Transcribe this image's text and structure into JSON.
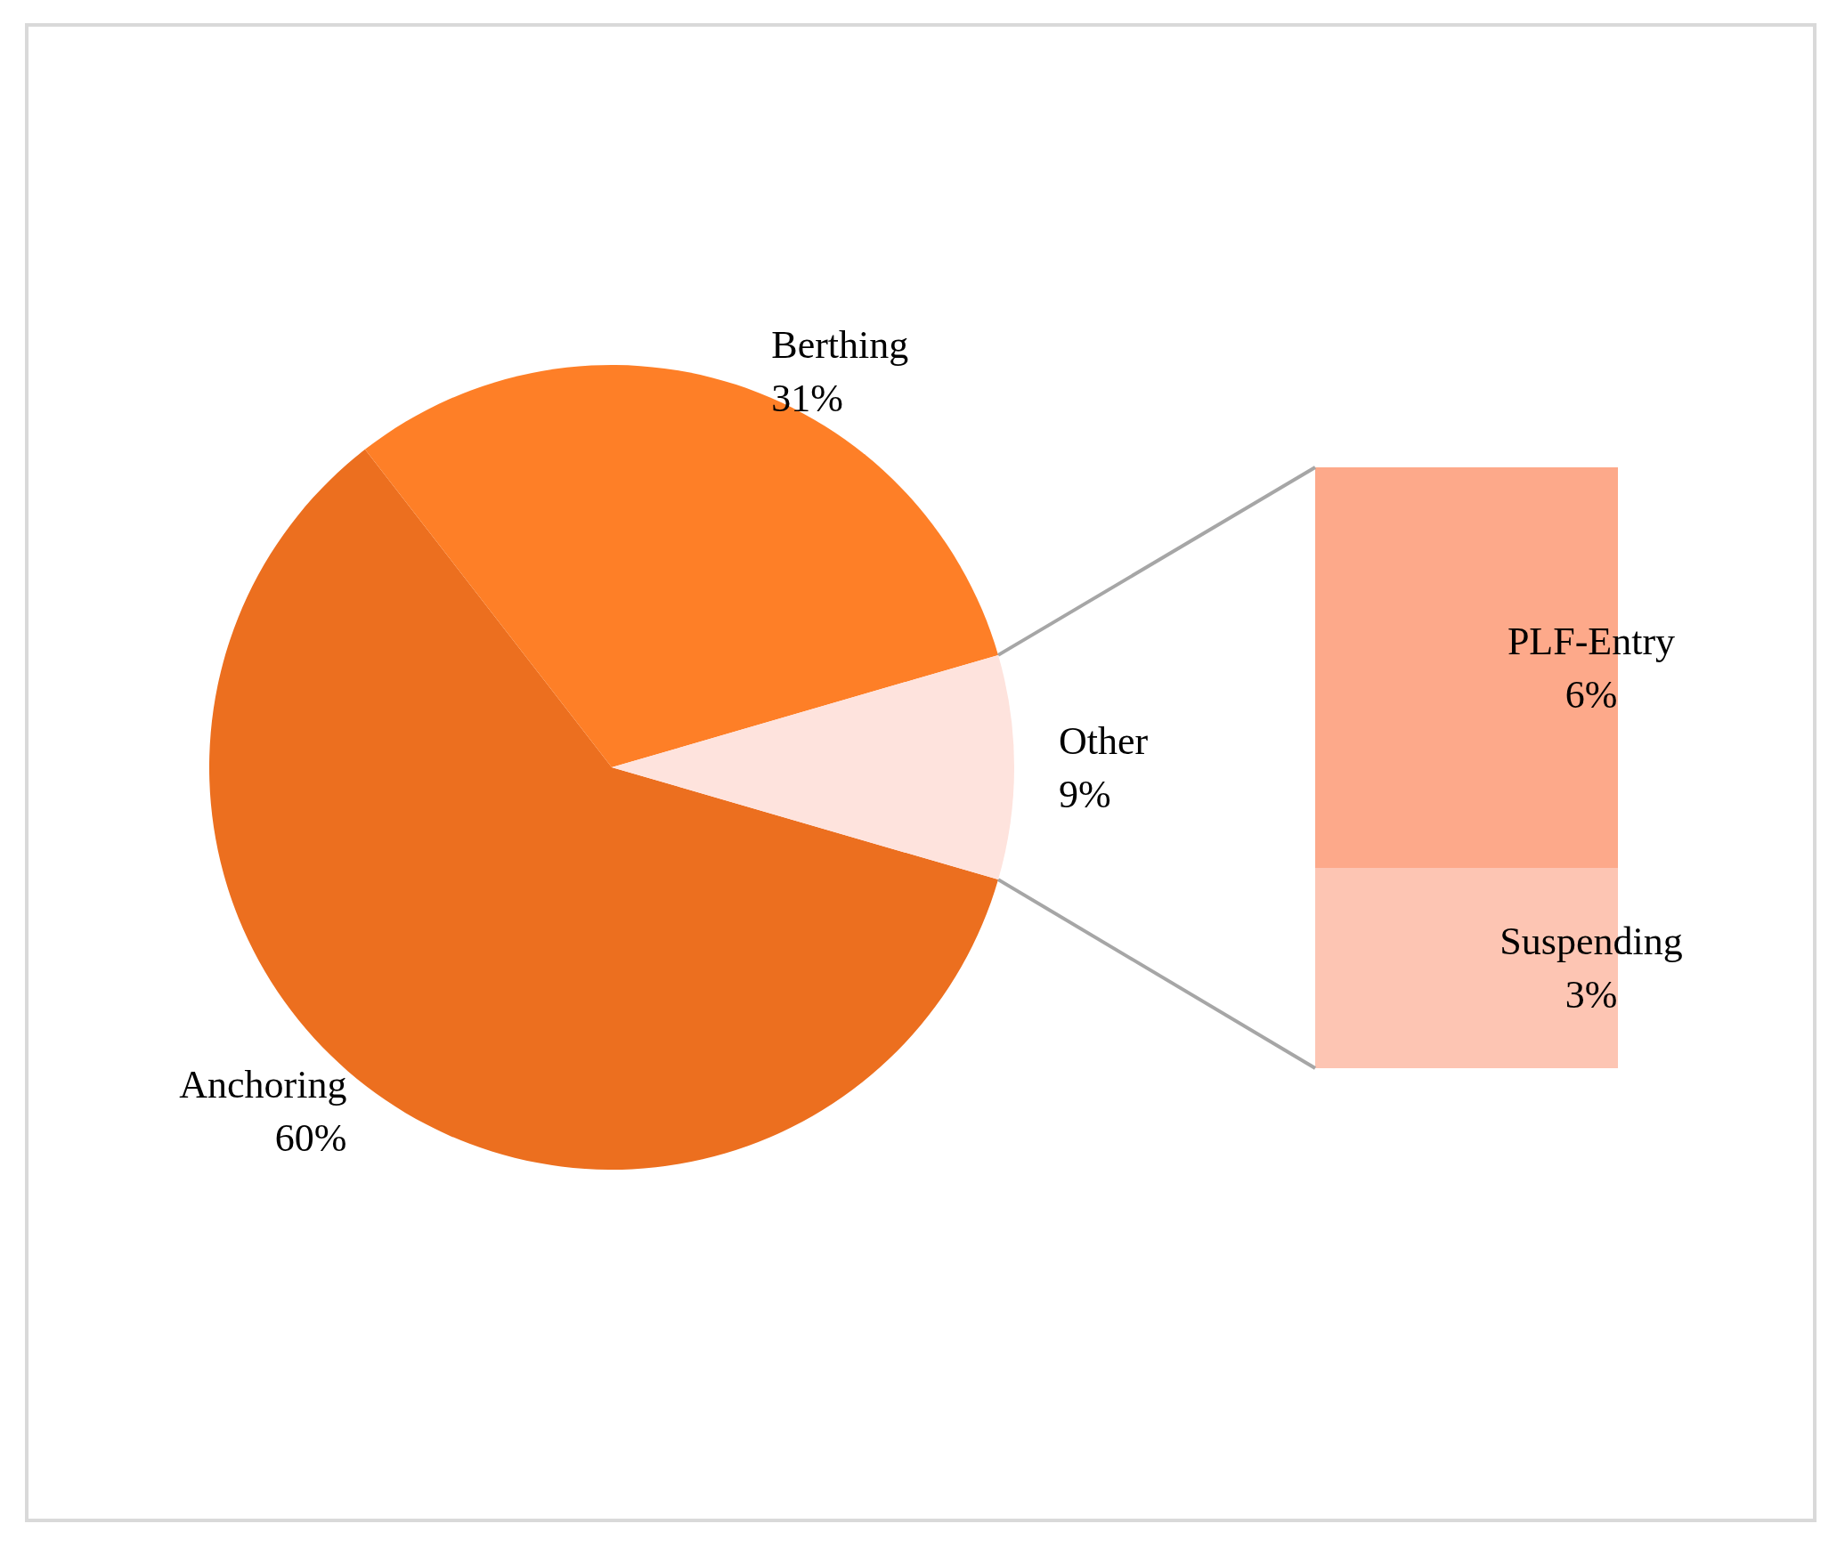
{
  "chart_data": [
    {
      "type": "pie",
      "categories": [
        "Anchoring",
        "Berthing",
        "Other"
      ],
      "values": [
        60,
        31,
        9
      ],
      "colors": [
        "#ec6f1f",
        "#fe7f27",
        "#fee3dd"
      ],
      "value_labels": [
        "60%",
        "31%",
        "9%"
      ],
      "legend": false
    },
    {
      "type": "bar",
      "stacked": true,
      "categories": [
        null
      ],
      "legend": false,
      "series": [
        {
          "name": "Suspending",
          "color": "#fdc5b3",
          "values": [
            3
          ],
          "value_labels": [
            "3%"
          ]
        },
        {
          "name": "PLF-Entry",
          "color": "#fda98a",
          "values": [
            6
          ],
          "value_labels": [
            "6%"
          ]
        }
      ]
    }
  ]
}
